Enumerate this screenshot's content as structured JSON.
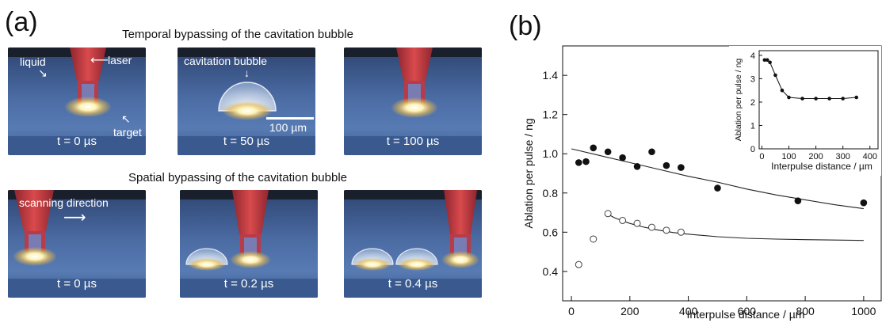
{
  "panel_a": {
    "letter": "(a)",
    "temporal_title": "Temporal bypassing of the cavitation bubble",
    "spatial_title": "Spatial bypassing of the cavitation bubble",
    "labels": {
      "liquid": "liquid",
      "laser": "laser",
      "target": "target",
      "cavitation_bubble": "cavitation bubble",
      "scale_bar": "100 µm",
      "scanning_direction": "scanning direction"
    },
    "temporal_times": [
      "t = 0 µs",
      "t = 50 µs",
      "t = 100 µs"
    ],
    "spatial_times": [
      "t = 0 µs",
      "t = 0.2 µs",
      "t = 0.4 µs"
    ],
    "colors": {
      "liquid": "#3d5d92",
      "laser": "#c73a3e",
      "glow": "#fff6c8"
    }
  },
  "panel_b": {
    "letter": "(b)",
    "chart_data": {
      "type": "scatter",
      "xlabel": "Interpulse distance  /  µm",
      "ylabel": "Ablation per pulse  /  ng",
      "xlim": [
        -30,
        1060
      ],
      "ylim": [
        0.25,
        1.55
      ],
      "xticks": [
        0,
        200,
        400,
        600,
        800,
        1000
      ],
      "yticks": [
        0.4,
        0.6,
        0.8,
        1.0,
        1.2,
        1.4
      ],
      "series": [
        {
          "marker": "filled",
          "x": [
            25,
            50,
            75,
            125,
            175,
            225,
            275,
            325,
            375,
            500,
            775,
            1000
          ],
          "y": [
            0.955,
            0.96,
            1.03,
            1.01,
            0.98,
            0.935,
            1.01,
            0.94,
            0.93,
            0.825,
            0.76,
            0.75
          ]
        },
        {
          "marker": "open",
          "x": [
            25,
            75,
            125,
            175,
            225,
            275,
            325,
            375
          ],
          "y": [
            0.435,
            0.565,
            0.695,
            0.66,
            0.645,
            0.625,
            0.61,
            0.6
          ]
        }
      ],
      "fits": [
        {
          "x": [
            0,
            100,
            200,
            300,
            400,
            500,
            600,
            700,
            800,
            900,
            1000
          ],
          "y": [
            1.025,
            0.99,
            0.955,
            0.92,
            0.885,
            0.855,
            0.82,
            0.79,
            0.765,
            0.74,
            0.72
          ]
        },
        {
          "x": [
            120,
            150,
            200,
            250,
            300,
            350,
            400,
            500,
            600,
            700,
            800,
            900,
            1000
          ],
          "y": [
            0.695,
            0.672,
            0.645,
            0.625,
            0.61,
            0.598,
            0.59,
            0.577,
            0.569,
            0.565,
            0.562,
            0.56,
            0.558
          ]
        }
      ],
      "inset": {
        "type": "line",
        "xlabel": "Interpulse distance  /  µm",
        "ylabel": "Ablation per pulse  /  ng",
        "xlim": [
          -10,
          430
        ],
        "ylim": [
          0,
          4.2
        ],
        "xticks": [
          0,
          100,
          200,
          300,
          400
        ],
        "xtick_labels": [
          "0",
          "100",
          "200",
          "300",
          "400"
        ],
        "yticks": [
          0,
          1,
          2,
          3,
          4
        ],
        "x": [
          10,
          20,
          30,
          50,
          75,
          100,
          150,
          200,
          250,
          300,
          350
        ],
        "y": [
          3.8,
          3.8,
          3.7,
          3.15,
          2.5,
          2.2,
          2.15,
          2.15,
          2.15,
          2.15,
          2.2
        ]
      }
    }
  }
}
